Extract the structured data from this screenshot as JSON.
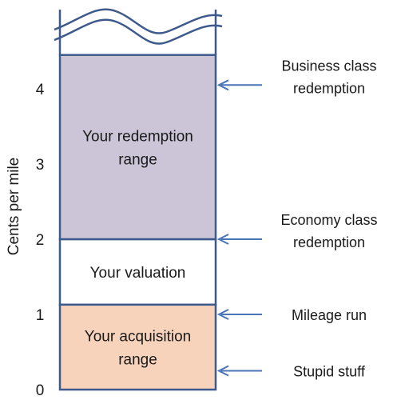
{
  "chart_data": {
    "type": "diagram",
    "ylabel": "Cents per mile",
    "y_ticks": [
      "0",
      "1",
      "2",
      "3",
      "4"
    ],
    "colors": {
      "outline": "#3e5a8c",
      "arrow": "#4a74b8",
      "redemption_fill": "#ccc5d8",
      "valuation_fill": "#ffffff",
      "acquisition_fill": "#f7d3bc"
    },
    "regions": [
      {
        "name": "acquisition",
        "lines": [
          "Your acquisition",
          "range"
        ],
        "from": 0,
        "to": 1.13
      },
      {
        "name": "valuation",
        "lines": [
          "Your valuation"
        ],
        "from": 1.13,
        "to": 2.0
      },
      {
        "name": "redemption",
        "lines": [
          "Your redemption",
          "range"
        ],
        "from": 2.0,
        "to": 4.45
      }
    ],
    "annotations": [
      {
        "name": "business-class",
        "lines": [
          "Business class",
          "redemption"
        ],
        "value": 4.05
      },
      {
        "name": "economy-class",
        "lines": [
          "Economy class",
          "redemption"
        ],
        "value": 2.0
      },
      {
        "name": "mileage-run",
        "lines": [
          "Mileage run"
        ],
        "value": 1.0
      },
      {
        "name": "stupid-stuff",
        "lines": [
          "Stupid stuff"
        ],
        "value": 0.25
      }
    ]
  }
}
